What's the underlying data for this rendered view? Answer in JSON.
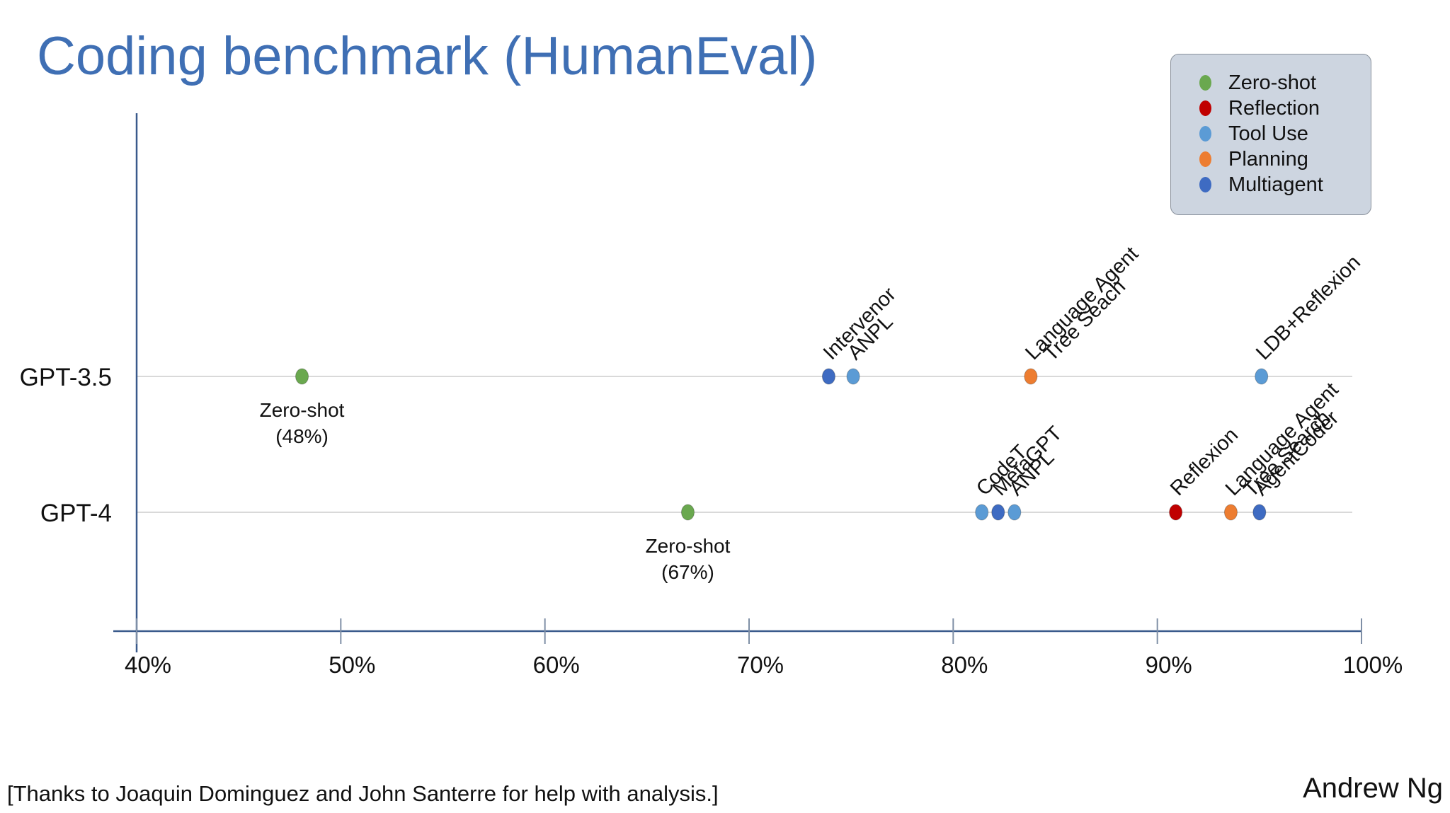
{
  "slide": {
    "title": "Coding benchmark (HumanEval)",
    "footnote": "[Thanks to Joaquin Dominguez and John Santerre for help with analysis.]",
    "author": "Andrew Ng"
  },
  "legend": {
    "items": [
      {
        "label": "Zero-shot",
        "color": "#6aa84f"
      },
      {
        "label": "Reflection",
        "color": "#c00000"
      },
      {
        "label": "Tool Use",
        "color": "#5b9bd5"
      },
      {
        "label": "Planning",
        "color": "#ed7d31"
      },
      {
        "label": "Multiagent",
        "color": "#3e6bc2"
      }
    ]
  },
  "chart_data": {
    "type": "scatter",
    "title": "Coding benchmark (HumanEval)",
    "xlabel": "",
    "ylabel": "",
    "xlim": [
      40,
      100
    ],
    "x_ticks": [
      {
        "value": 40,
        "label": "40%"
      },
      {
        "value": 50,
        "label": "50%"
      },
      {
        "value": 60,
        "label": "60%"
      },
      {
        "value": 70,
        "label": "70%"
      },
      {
        "value": 80,
        "label": "80%"
      },
      {
        "value": 90,
        "label": "90%"
      },
      {
        "value": 100,
        "label": "100%"
      }
    ],
    "categories": [
      "GPT-3.5",
      "GPT-4"
    ],
    "grid": false,
    "legend_position": "top-right",
    "points": [
      {
        "category": "GPT-3.5",
        "x": 48.1,
        "group": "Zero-shot",
        "label_lines": [
          "Zero-shot",
          "(48%)"
        ],
        "label_style": "below"
      },
      {
        "category": "GPT-3.5",
        "x": 73.9,
        "group": "Multiagent",
        "label_lines": [
          "Intervenor"
        ],
        "label_style": "rotated"
      },
      {
        "category": "GPT-3.5",
        "x": 75.1,
        "group": "Tool Use",
        "label_lines": [
          "ANPL"
        ],
        "label_style": "rotated"
      },
      {
        "category": "GPT-3.5",
        "x": 83.8,
        "group": "Planning",
        "label_lines": [
          "Language Agent",
          "Tree Seach"
        ],
        "label_style": "rotated"
      },
      {
        "category": "GPT-3.5",
        "x": 95.1,
        "group": "Tool Use",
        "label_lines": [
          "LDB+Reflexion"
        ],
        "label_style": "rotated"
      },
      {
        "category": "GPT-4",
        "x": 67.0,
        "group": "Zero-shot",
        "label_lines": [
          "Zero-shot",
          "(67%)"
        ],
        "label_style": "below"
      },
      {
        "category": "GPT-4",
        "x": 81.4,
        "group": "Tool Use",
        "label_lines": [
          "CodeT"
        ],
        "label_style": "rotated"
      },
      {
        "category": "GPT-4",
        "x": 82.2,
        "group": "Multiagent",
        "label_lines": [
          "MetaGPT"
        ],
        "label_style": "rotated"
      },
      {
        "category": "GPT-4",
        "x": 83.0,
        "group": "Tool Use",
        "label_lines": [
          "ANPL"
        ],
        "label_style": "rotated"
      },
      {
        "category": "GPT-4",
        "x": 90.9,
        "group": "Reflection",
        "label_lines": [
          "Reflexion"
        ],
        "label_style": "rotated"
      },
      {
        "category": "GPT-4",
        "x": 93.6,
        "group": "Planning",
        "label_lines": [
          "Language Agent",
          "Tree Search"
        ],
        "label_style": "rotated"
      },
      {
        "category": "GPT-4",
        "x": 95.0,
        "group": "Multiagent",
        "label_lines": [
          "AgentCoder"
        ],
        "label_style": "rotated"
      }
    ]
  }
}
